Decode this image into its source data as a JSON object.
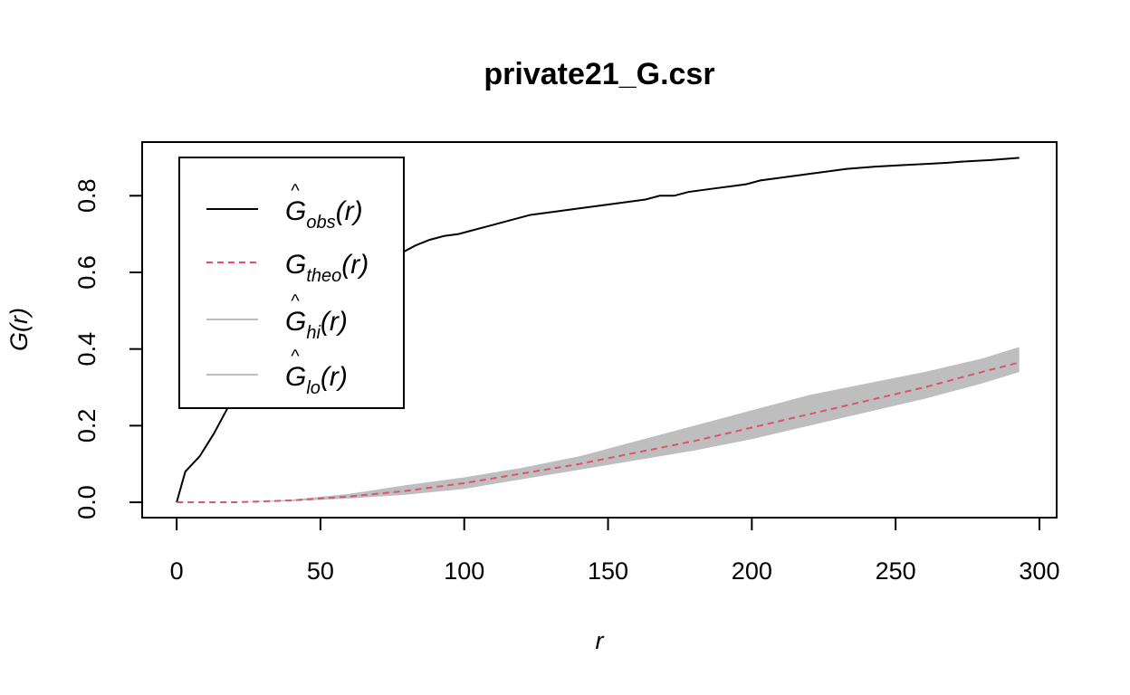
{
  "chart_data": {
    "type": "line",
    "title": "private21_G.csr",
    "xlabel": "r",
    "ylabel": "G(r)",
    "xlim": [
      -12,
      306
    ],
    "ylim": [
      -0.04,
      0.94
    ],
    "x_ticks": [
      0,
      50,
      100,
      150,
      200,
      250,
      300
    ],
    "y_ticks": [
      0.0,
      0.2,
      0.4,
      0.6,
      0.8
    ],
    "x_tick_labels": [
      "0",
      "50",
      "100",
      "150",
      "200",
      "250",
      "300"
    ],
    "y_tick_labels": [
      "0.0",
      "0.2",
      "0.4",
      "0.6",
      "0.8"
    ],
    "grid": false,
    "legend_position": "top-left",
    "series": [
      {
        "name": "Ĝobs(r)",
        "legend_main": "G",
        "legend_sub": "obs",
        "legend_hat": true,
        "color": "#000000",
        "style": "solid",
        "x": [
          0,
          3,
          8,
          13,
          18,
          23,
          28,
          33,
          38,
          43,
          48,
          53,
          58,
          63,
          68,
          73,
          78,
          83,
          88,
          93,
          98,
          103,
          108,
          113,
          118,
          123,
          128,
          133,
          138,
          143,
          148,
          153,
          158,
          163,
          168,
          173,
          178,
          183,
          188,
          193,
          198,
          203,
          208,
          213,
          218,
          223,
          228,
          233,
          238,
          243,
          248,
          253,
          258,
          263,
          268,
          273,
          278,
          283,
          288,
          293
        ],
        "values": [
          0.0,
          0.08,
          0.12,
          0.18,
          0.25,
          0.31,
          0.36,
          0.41,
          0.45,
          0.49,
          0.52,
          0.55,
          0.57,
          0.6,
          0.62,
          0.64,
          0.65,
          0.67,
          0.685,
          0.695,
          0.7,
          0.71,
          0.72,
          0.73,
          0.74,
          0.75,
          0.755,
          0.76,
          0.765,
          0.77,
          0.775,
          0.78,
          0.785,
          0.79,
          0.8,
          0.8,
          0.81,
          0.815,
          0.82,
          0.825,
          0.83,
          0.84,
          0.845,
          0.85,
          0.855,
          0.86,
          0.865,
          0.87,
          0.873,
          0.876,
          0.878,
          0.88,
          0.882,
          0.884,
          0.886,
          0.889,
          0.891,
          0.893,
          0.896,
          0.899
        ]
      },
      {
        "name": "Gtheo(r)",
        "legend_main": "G",
        "legend_sub": "theo",
        "legend_hat": false,
        "color": "#df536b",
        "style": "dashed",
        "x": [
          0,
          20,
          40,
          60,
          80,
          100,
          120,
          140,
          160,
          180,
          200,
          220,
          240,
          260,
          280,
          293
        ],
        "values": [
          0.0,
          0.0,
          0.005,
          0.015,
          0.03,
          0.05,
          0.075,
          0.1,
          0.13,
          0.16,
          0.195,
          0.23,
          0.265,
          0.3,
          0.34,
          0.365
        ]
      },
      {
        "name": "Ĝhi(r)",
        "legend_main": "G",
        "legend_sub": "hi",
        "legend_hat": true,
        "color": "#bebebe",
        "style": "band-upper",
        "x": [
          0,
          20,
          40,
          60,
          80,
          100,
          120,
          140,
          160,
          180,
          200,
          220,
          240,
          260,
          280,
          293
        ],
        "values": [
          0.0,
          0.0,
          0.007,
          0.022,
          0.045,
          0.065,
          0.09,
          0.12,
          0.16,
          0.2,
          0.24,
          0.28,
          0.31,
          0.34,
          0.375,
          0.405
        ]
      },
      {
        "name": "Ĝlo(r)",
        "legend_main": "G",
        "legend_sub": "lo",
        "legend_hat": true,
        "color": "#bebebe",
        "style": "band-lower",
        "x": [
          0,
          20,
          40,
          60,
          80,
          100,
          120,
          140,
          160,
          180,
          200,
          220,
          240,
          260,
          280,
          293
        ],
        "values": [
          0.0,
          0.0,
          0.003,
          0.01,
          0.02,
          0.035,
          0.06,
          0.085,
          0.11,
          0.135,
          0.165,
          0.2,
          0.235,
          0.27,
          0.31,
          0.34
        ]
      }
    ]
  }
}
